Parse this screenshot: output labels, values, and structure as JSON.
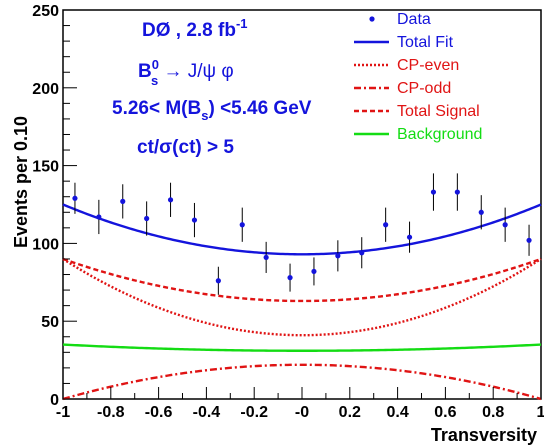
{
  "chart_data": {
    "type": "line",
    "xlabel": "Transversity",
    "ylabel": "Events per 0.10",
    "xlim": [
      -1,
      1
    ],
    "ylim": [
      0,
      250
    ],
    "x_ticks": [
      "-1",
      "-0.8",
      "-0.6",
      "-0.4",
      "-0.2",
      "-0",
      "0.2",
      "0.4",
      "0.6",
      "0.8",
      "1"
    ],
    "y_ticks": [
      "0",
      "50",
      "100",
      "150",
      "200",
      "250"
    ],
    "grid": false,
    "legend_position": "top-right",
    "annotations": {
      "line1": "DØ , 2.8 fb",
      "line1_sup": "-1",
      "line2_a": "B",
      "line2_sup": "0",
      "line2_sub": "s",
      "line2_b": " → J/ψ φ",
      "line3_a": "5.26< M(B",
      "line3_sub": "s",
      "line3_b": ") <5.46 GeV",
      "line4": "ct/σ(ct) > 5"
    },
    "data_points": {
      "name": "Data",
      "color": "#1414dc",
      "x": [
        -0.95,
        -0.85,
        -0.75,
        -0.65,
        -0.55,
        -0.45,
        -0.35,
        -0.25,
        -0.15,
        -0.05,
        0.05,
        0.15,
        0.25,
        0.35,
        0.45,
        0.55,
        0.65,
        0.75,
        0.85,
        0.95
      ],
      "y": [
        129,
        117,
        127,
        116,
        128,
        115,
        76,
        112,
        91,
        78,
        82,
        92,
        94,
        112,
        104,
        133,
        133,
        120,
        112,
        102
      ],
      "err": [
        10,
        11,
        11,
        11,
        11,
        11,
        9,
        11,
        10,
        9,
        9,
        10,
        10,
        11,
        10,
        12,
        12,
        11,
        11,
        10
      ]
    },
    "series": [
      {
        "name": "Total Fit",
        "style": "solid",
        "color": "#1414dc",
        "at_zero": 93,
        "at_edge": 125
      },
      {
        "name": "CP-even",
        "style": "dotted",
        "color": "#e01414",
        "at_zero": 41,
        "at_edge": 90
      },
      {
        "name": "CP-odd",
        "style": "dash-dot",
        "color": "#e01414",
        "at_zero": 22,
        "at_edge": 0
      },
      {
        "name": "Total Signal",
        "style": "dashed",
        "color": "#e01414",
        "at_zero": 63,
        "at_edge": 90
      },
      {
        "name": "Background",
        "style": "solid",
        "color": "#14dc14",
        "at_zero": 31,
        "at_edge": 35
      }
    ]
  }
}
